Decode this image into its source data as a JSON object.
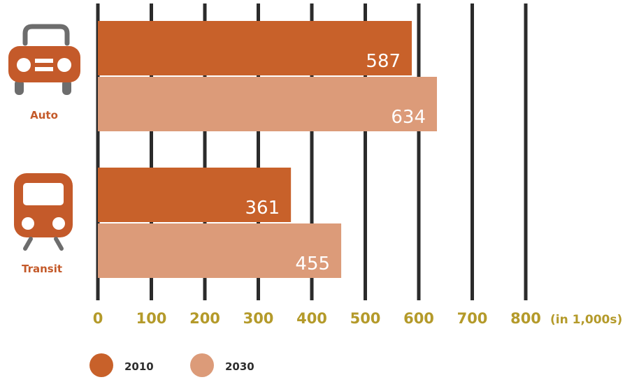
{
  "chart_data": {
    "type": "bar",
    "orientation": "horizontal",
    "categories": [
      "Auto",
      "Transit"
    ],
    "series": [
      {
        "name": "2010",
        "values": [
          587,
          361
        ],
        "color": "#c8612a"
      },
      {
        "name": "2030",
        "values": [
          634,
          455
        ],
        "color": "#dc9b79"
      }
    ],
    "xlim": [
      0,
      800
    ],
    "x_ticks": [
      "0",
      "100",
      "200",
      "300",
      "400",
      "500",
      "600",
      "700",
      "800"
    ],
    "xlabel": "(in 1,000s)",
    "grid": true,
    "legend_position": "bottom-left",
    "category_icons": [
      "car-icon",
      "train-icon"
    ]
  },
  "colors": {
    "tick_text": "#b49a2a",
    "category_text": "#c45a2a",
    "icon": "#c45a2a",
    "grid": "#2b2b2b"
  }
}
